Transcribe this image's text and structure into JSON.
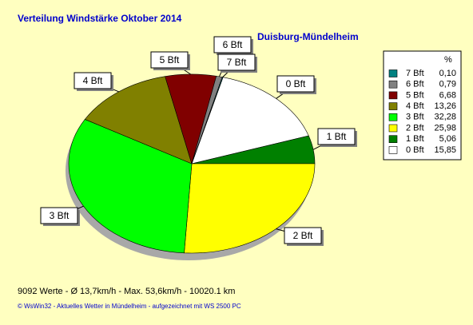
{
  "chart_data": {
    "type": "pie",
    "title": "Verteilung Windstärke  Oktober 2014",
    "subtitle": "Duisburg-Mündelheim",
    "legend_header": "%",
    "categories": [
      "7 Bft",
      "6 Bft",
      "5 Bft",
      "4 Bft",
      "3 Bft",
      "2 Bft",
      "1 Bft",
      "0 Bft"
    ],
    "values": [
      0.1,
      0.79,
      6.68,
      13.26,
      32.28,
      25.98,
      5.06,
      15.85
    ],
    "value_labels": [
      "0,10",
      "0,79",
      "6,68",
      "13,26",
      "32,28",
      "25,98",
      "5,06",
      "15,85"
    ],
    "colors": [
      "#008080",
      "#808080",
      "#800000",
      "#808000",
      "#00ff00",
      "#ffff00",
      "#008000",
      "#ffffff"
    ],
    "footer": "9092 Werte   -   Ø 13,7km/h  -  Max. 53,6km/h  -   10020.1 km",
    "credit": "© WsWin32  -  Aktuelles Wetter in Mündelheim  -  aufgezeichnet mit WS 2500 PC"
  }
}
